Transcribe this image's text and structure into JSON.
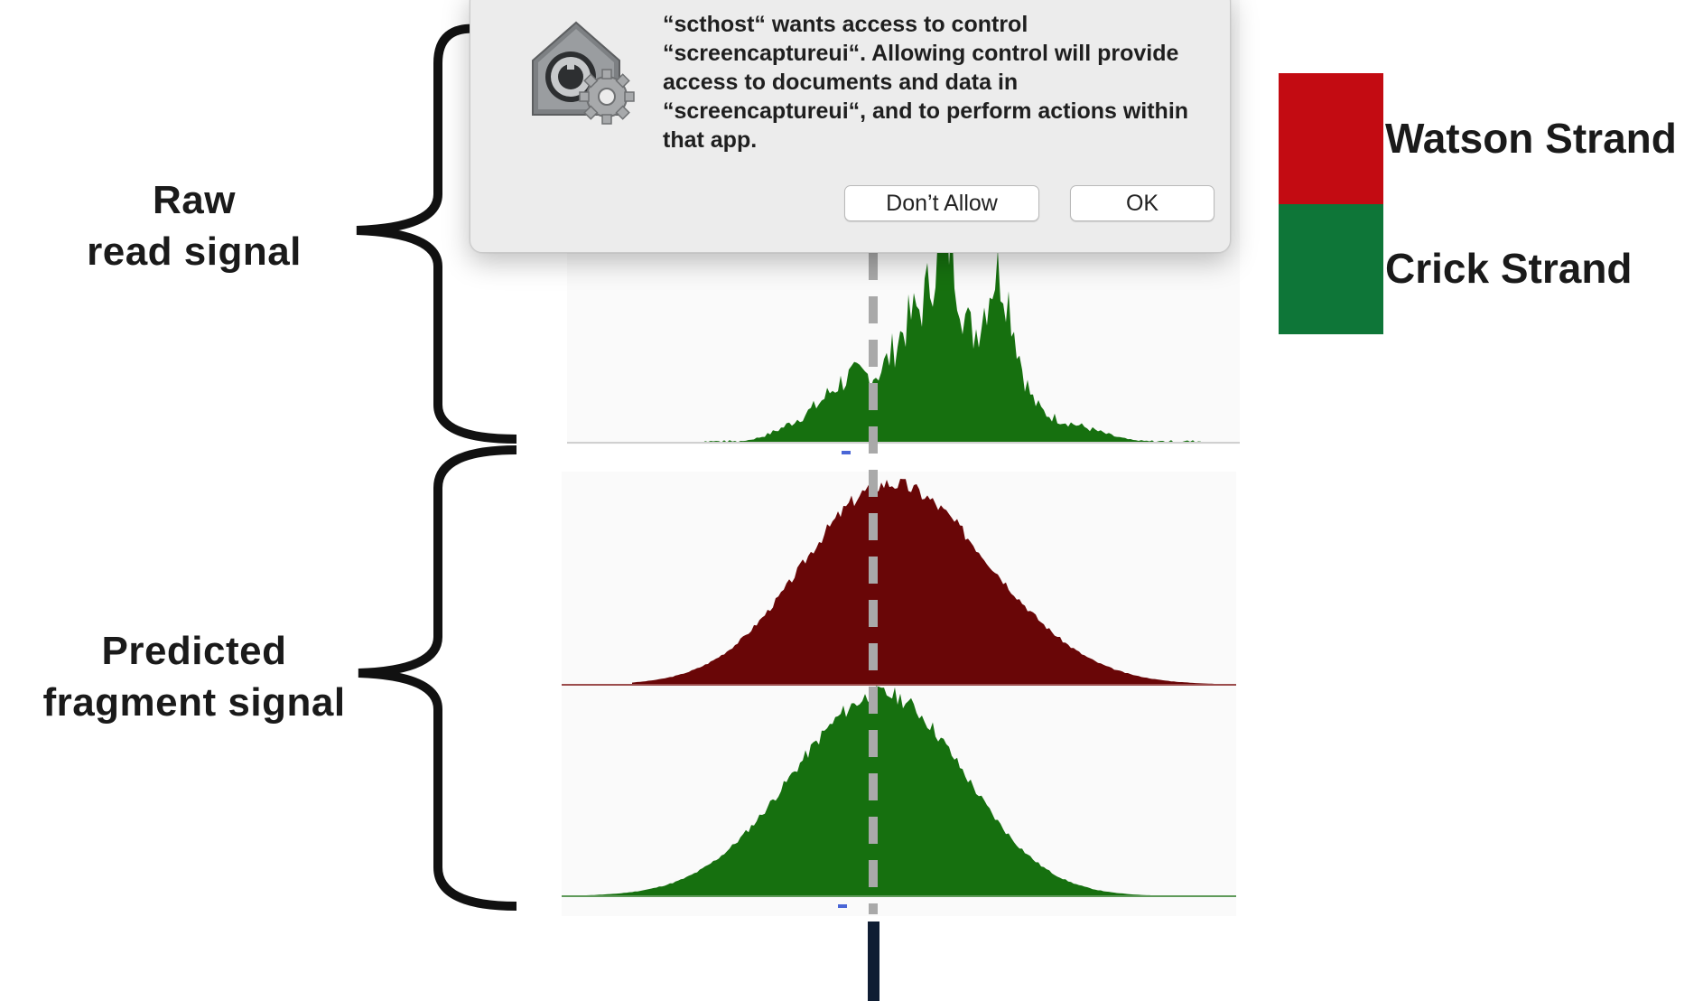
{
  "figure": {
    "raw_label_line1": "Raw",
    "raw_label_line2": "read signal",
    "predicted_label_line1": "Predicted",
    "predicted_label_line2": "fragment signal",
    "legend": [
      {
        "label": "Watson Strand",
        "color": "#c30b12"
      },
      {
        "label": "Crick Strand",
        "color": "#0e7638"
      }
    ],
    "colors": {
      "raw_read_fill": "#16700f",
      "watson_fragment_fill": "#690607",
      "crick_fragment_fill": "#16700f",
      "center_line": "#a9a9a9",
      "bottom_bar": "#0f1d33"
    }
  },
  "dialog": {
    "icon": "security-preferences-gear-icon",
    "message": "“scthost“ wants access to control “screencaptureui“. Allowing control will provide access to documents and data in “screencaptureui“, and to perform actions within that app.",
    "dont_allow_label": "Don’t Allow",
    "ok_label": "OK"
  }
}
